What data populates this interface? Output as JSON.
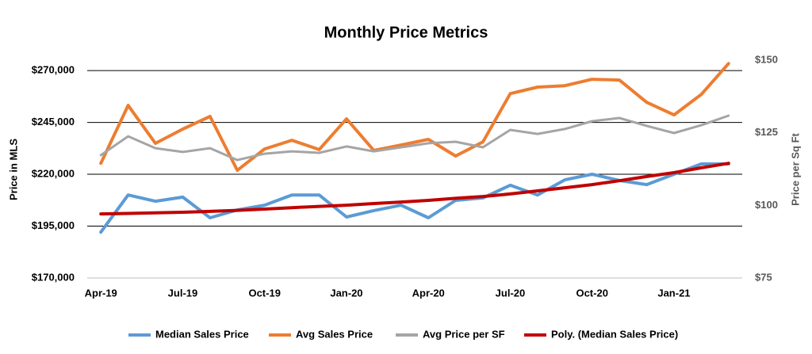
{
  "chart_data": {
    "type": "line",
    "title": "Monthly Price Metrics",
    "y_label": "Price in MLS",
    "y2_label": "Price per Sq Ft",
    "categories": [
      "Apr-19",
      null,
      null,
      "Jul-19",
      null,
      null,
      "Oct-19",
      null,
      null,
      "Jan-20",
      null,
      null,
      "Apr-20",
      null,
      null,
      "Jul-20",
      null,
      null,
      "Oct-20",
      null,
      null,
      "Jan-21",
      null,
      null
    ],
    "ylim": [
      170000,
      275000
    ],
    "yticks": [
      {
        "value": 170000,
        "label": "$170,000"
      },
      {
        "value": 195000,
        "label": "$195,000"
      },
      {
        "value": 220000,
        "label": "$220,000"
      },
      {
        "value": 245000,
        "label": "$245,000"
      },
      {
        "value": 270000,
        "label": "$270,000"
      }
    ],
    "y2lim": [
      75,
      150
    ],
    "y2ticks": [
      {
        "value": 75,
        "label": "$75"
      },
      {
        "value": 100,
        "label": "$100"
      },
      {
        "value": 125,
        "label": "$125"
      },
      {
        "value": 150,
        "label": "$150"
      }
    ],
    "grid": true,
    "series": [
      {
        "name": "Median Sales Price",
        "color": "#5b9bd5",
        "values": [
          192100,
          210000,
          207000,
          209000,
          199000,
          202800,
          205100,
          210000,
          210000,
          199400,
          202500,
          205100,
          199000,
          207400,
          208600,
          214700,
          210000,
          217300,
          220000,
          217000,
          215000,
          220000,
          225000,
          225000
        ]
      },
      {
        "name": "Avg Sales Price",
        "color": "#ed7d31",
        "values": [
          225300,
          253200,
          234900,
          241800,
          247900,
          221900,
          232200,
          236400,
          231900,
          246700,
          231500,
          234100,
          236800,
          228800,
          235600,
          258900,
          262000,
          262700,
          265800,
          265400,
          254700,
          248600,
          258500,
          273400
        ]
      },
      {
        "name": "Avg Price per SF",
        "color": "#a5a5a5",
        "axis": "y2",
        "values": [
          117.3,
          123.8,
          119.7,
          118.4,
          119.7,
          115.6,
          117.8,
          118.6,
          118.1,
          120.3,
          118.6,
          120.0,
          121.4,
          121.9,
          120.0,
          126.0,
          124.6,
          126.3,
          129.0,
          130.1,
          127.4,
          124.9,
          127.6,
          130.9
        ]
      },
      {
        "name": "Poly. (Median Sales Price)",
        "color": "#c00000",
        "values": [
          200900,
          201100,
          201400,
          201700,
          202100,
          202600,
          203200,
          203900,
          204500,
          205100,
          205900,
          206600,
          207400,
          208400,
          209300,
          210500,
          212000,
          213500,
          215000,
          216900,
          218900,
          220800,
          223100,
          225300
        ]
      }
    ]
  }
}
